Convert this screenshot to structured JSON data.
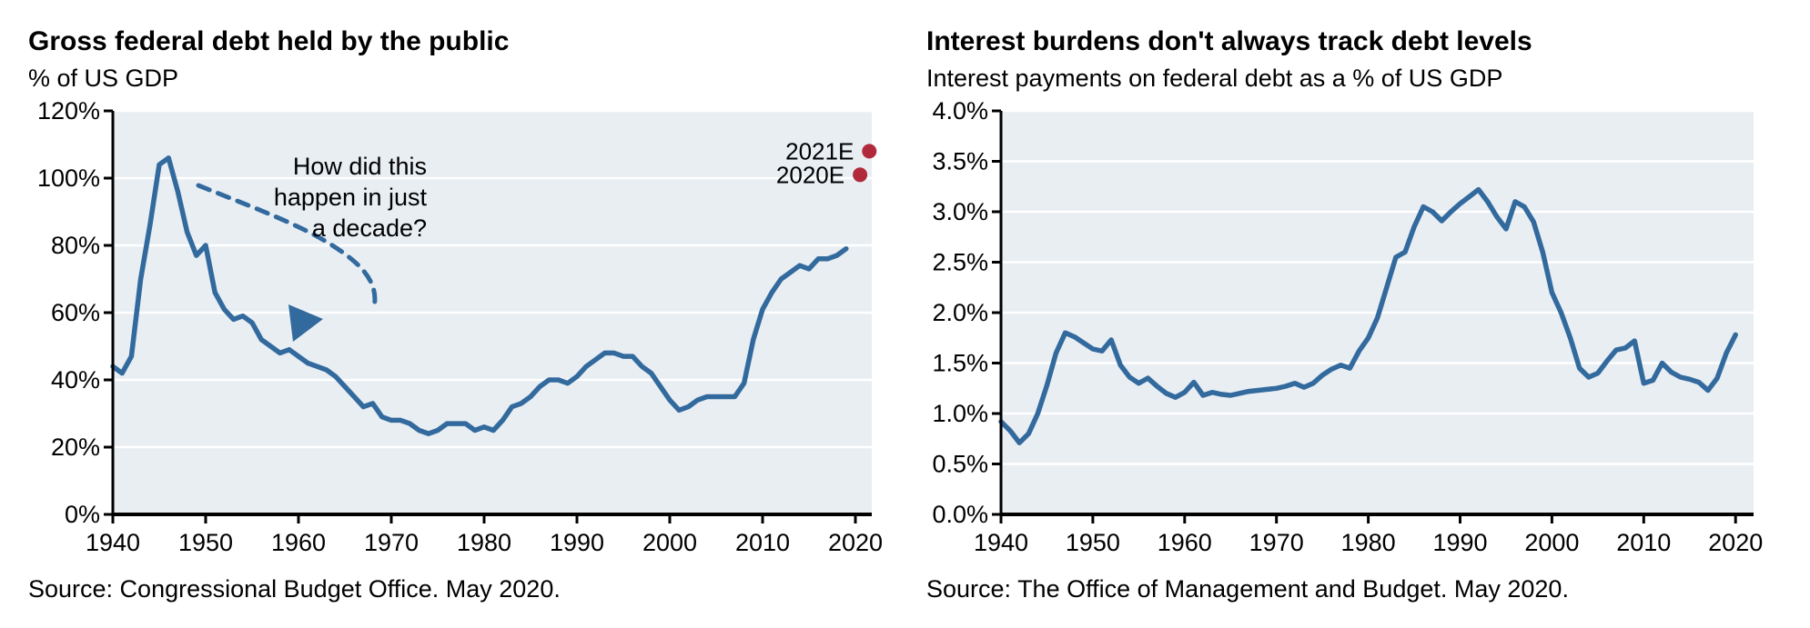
{
  "page": {
    "background": "#FFFFFF"
  },
  "chart_data": [
    {
      "type": "line",
      "title": "Gross federal debt held by the public",
      "subtitle": "% of US GDP",
      "source": "Source: Congressional Budget Office. May 2020.",
      "xlabel": "",
      "ylabel": "% of US GDP",
      "ylim": [
        0,
        120
      ],
      "grid": true,
      "legend": "none",
      "xticks": [
        1940,
        1950,
        1960,
        1970,
        1980,
        1990,
        2000,
        2010,
        2020
      ],
      "ytick_values": [
        0,
        20,
        40,
        60,
        80,
        100,
        120
      ],
      "ytick_labels": [
        "0%",
        "20%",
        "40%",
        "60%",
        "80%",
        "100%",
        "120%"
      ],
      "x": [
        1940,
        1941,
        1942,
        1943,
        1944,
        1945,
        1946,
        1947,
        1948,
        1949,
        1950,
        1951,
        1952,
        1953,
        1954,
        1955,
        1956,
        1957,
        1958,
        1959,
        1960,
        1961,
        1962,
        1963,
        1964,
        1965,
        1966,
        1967,
        1968,
        1969,
        1970,
        1971,
        1972,
        1973,
        1974,
        1975,
        1976,
        1977,
        1978,
        1979,
        1980,
        1981,
        1982,
        1983,
        1984,
        1985,
        1986,
        1987,
        1988,
        1989,
        1990,
        1991,
        1992,
        1993,
        1994,
        1995,
        1996,
        1997,
        1998,
        1999,
        2000,
        2001,
        2002,
        2003,
        2004,
        2005,
        2006,
        2007,
        2008,
        2009,
        2010,
        2011,
        2012,
        2013,
        2014,
        2015,
        2016,
        2017,
        2018,
        2019
      ],
      "series": [
        {
          "values": [
            44,
            42,
            47,
            70,
            86,
            104,
            106,
            96,
            84,
            77,
            80,
            66,
            61,
            58,
            59,
            57,
            52,
            50,
            48,
            49,
            47,
            45,
            44,
            43,
            41,
            38,
            35,
            32,
            33,
            29,
            28,
            28,
            27,
            25,
            24,
            25,
            27,
            27,
            27,
            25,
            26,
            25,
            28,
            32,
            33,
            35,
            38,
            40,
            40,
            39,
            41,
            44,
            46,
            48,
            48,
            47,
            47,
            44,
            42,
            38,
            34,
            31,
            32,
            34,
            35,
            35,
            35,
            35,
            39,
            52,
            61,
            66,
            70,
            72,
            74,
            73,
            76,
            76,
            77,
            79
          ]
        }
      ],
      "annotation": {
        "lines": [
          "How did this",
          "happen in just",
          "a decade?"
        ]
      },
      "estimates": [
        {
          "label": "2021E",
          "year": 2021.5,
          "value": 108
        },
        {
          "label": "2020E",
          "year": 2020.5,
          "value": 101
        }
      ],
      "colors": {
        "line": "#336A9E",
        "plot_bg": "#E9EEF3",
        "grid": "#FFFFFF",
        "axis": "#000000",
        "estimate_dot": "#B12A3C"
      }
    },
    {
      "type": "line",
      "title": "Interest burdens don't always track debt levels",
      "subtitle": "Interest payments on federal debt as a % of US GDP",
      "source": "Source: The Office of Management and Budget. May 2020.",
      "xlabel": "",
      "ylabel": "Interest payments on federal debt as a % of US GDP",
      "ylim": [
        0,
        4
      ],
      "grid": true,
      "legend": "none",
      "xticks": [
        1940,
        1950,
        1960,
        1970,
        1980,
        1990,
        2000,
        2010,
        2020
      ],
      "ytick_values": [
        0,
        0.5,
        1.0,
        1.5,
        2.0,
        2.5,
        3.0,
        3.5,
        4.0
      ],
      "ytick_labels": [
        "0.0%",
        "0.5%",
        "1.0%",
        "1.5%",
        "2.0%",
        "2.5%",
        "3.0%",
        "3.5%",
        "4.0%"
      ],
      "x": [
        1940,
        1941,
        1942,
        1943,
        1944,
        1945,
        1946,
        1947,
        1948,
        1949,
        1950,
        1951,
        1952,
        1953,
        1954,
        1955,
        1956,
        1957,
        1958,
        1959,
        1960,
        1961,
        1962,
        1963,
        1964,
        1965,
        1966,
        1967,
        1968,
        1969,
        1970,
        1971,
        1972,
        1973,
        1974,
        1975,
        1976,
        1977,
        1978,
        1979,
        1980,
        1981,
        1982,
        1983,
        1984,
        1985,
        1986,
        1987,
        1988,
        1989,
        1990,
        1991,
        1992,
        1993,
        1994,
        1995,
        1996,
        1997,
        1998,
        1999,
        2000,
        2001,
        2002,
        2003,
        2004,
        2005,
        2006,
        2007,
        2008,
        2009,
        2010,
        2011,
        2012,
        2013,
        2014,
        2015,
        2016,
        2017,
        2018,
        2019,
        2020
      ],
      "series": [
        {
          "values": [
            0.92,
            0.83,
            0.71,
            0.8,
            1.0,
            1.28,
            1.6,
            1.8,
            1.76,
            1.7,
            1.64,
            1.62,
            1.73,
            1.48,
            1.36,
            1.3,
            1.35,
            1.27,
            1.2,
            1.16,
            1.21,
            1.31,
            1.18,
            1.21,
            1.19,
            1.18,
            1.2,
            1.22,
            1.23,
            1.24,
            1.25,
            1.27,
            1.3,
            1.26,
            1.3,
            1.38,
            1.44,
            1.48,
            1.45,
            1.62,
            1.75,
            1.95,
            2.25,
            2.55,
            2.6,
            2.85,
            3.05,
            3.0,
            2.91,
            3.0,
            3.08,
            3.15,
            3.22,
            3.1,
            2.95,
            2.83,
            3.1,
            3.05,
            2.9,
            2.6,
            2.2,
            2.0,
            1.75,
            1.45,
            1.36,
            1.4,
            1.52,
            1.63,
            1.65,
            1.72,
            1.3,
            1.33,
            1.5,
            1.41,
            1.36,
            1.34,
            1.31,
            1.23,
            1.35,
            1.6,
            1.78
          ]
        }
      ],
      "colors": {
        "line": "#336A9E",
        "plot_bg": "#E9EEF3",
        "grid": "#FFFFFF",
        "axis": "#000000"
      }
    }
  ]
}
